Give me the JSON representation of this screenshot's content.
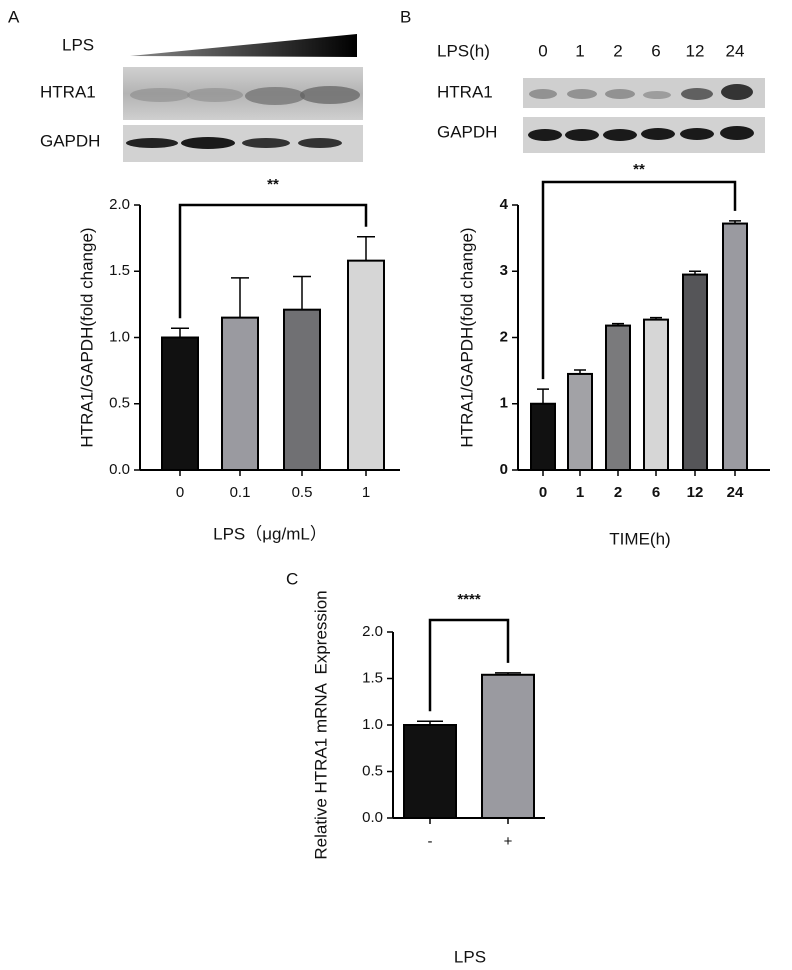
{
  "chart_data": [
    {
      "type": "bar",
      "panel": "A",
      "blot": {
        "labels": [
          "LPS",
          "HTRA1",
          "GAPDH"
        ]
      },
      "significance": "**",
      "y_label": "HTRA1/GAPDH(fold change)",
      "x_label": "LPS（μg/mL）",
      "categories": [
        "0",
        "0.1",
        "0.5",
        "1"
      ],
      "values": [
        1.0,
        1.15,
        1.21,
        1.58
      ],
      "errors": [
        0.07,
        0.3,
        0.25,
        0.18
      ],
      "colors": [
        "#111111",
        "#9a9aa0",
        "#707073",
        "#d6d6d6"
      ],
      "ylim": [
        0,
        2
      ],
      "yticks": [
        {
          "value": 0,
          "label": "0.0"
        },
        0.5,
        {
          "value": 1,
          "label": "1.0"
        },
        1.5,
        {
          "value": 2,
          "label": "2.0"
        }
      ]
    },
    {
      "type": "bar",
      "panel": "B",
      "blot": {
        "labels": [
          "LPS(h)",
          "HTRA1",
          "GAPDH"
        ],
        "lanes": [
          "0",
          "1",
          "2",
          "6",
          "12",
          "24"
        ]
      },
      "significance": "**",
      "y_label": "HTRA1/GAPDH(fold change)",
      "x_label": "TIME(h)",
      "categories": [
        "0",
        "1",
        "2",
        "6",
        "12",
        "24"
      ],
      "values": [
        1.0,
        1.45,
        2.18,
        2.27,
        2.95,
        3.72
      ],
      "errors": [
        0.22,
        0.06,
        0.03,
        0.03,
        0.05,
        0.04
      ],
      "colors": [
        "#111111",
        "#a2a2a6",
        "#7a7a7c",
        "#d6d6d6",
        "#555558",
        "#9a9aa0"
      ],
      "ylim": [
        0,
        4
      ],
      "yticks": [
        0,
        1,
        2,
        3,
        4
      ]
    },
    {
      "type": "bar",
      "panel": "C",
      "significance": "****",
      "y_label": "Relative HTRA1 mRNA  Expression",
      "x_label": "LPS",
      "categories": [
        "-",
        "+"
      ],
      "values": [
        1.0,
        1.54
      ],
      "errors": [
        0.04,
        0.02
      ],
      "colors": [
        "#111111",
        "#9a9aa0"
      ],
      "ylim": [
        0,
        2
      ],
      "yticks": [
        {
          "value": 0,
          "label": "0.0"
        },
        0.5,
        {
          "value": 1,
          "label": "1.0"
        },
        1.5,
        {
          "value": 2,
          "label": "2.0"
        }
      ]
    }
  ]
}
